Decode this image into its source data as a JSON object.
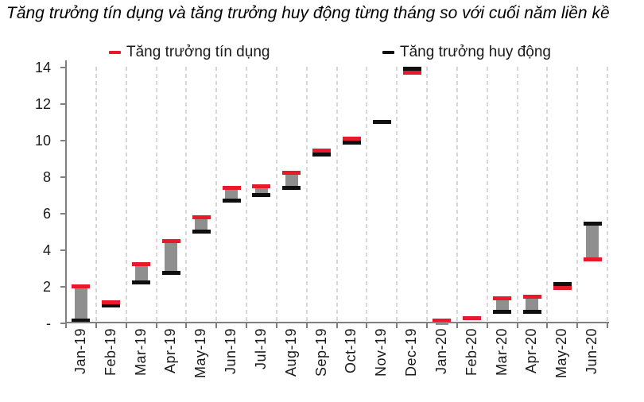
{
  "title": "Tăng trưởng tín dụng và tăng trưởng huy động từng tháng so với cuối năm liền kề",
  "legend": [
    {
      "label": "Tăng trưởng tín dụng",
      "color": "#e8192d"
    },
    {
      "label": "Tăng trưởng huy động",
      "color": "#0f0f0f"
    }
  ],
  "colors": {
    "credit": "#e8192d",
    "deposit": "#0f0f0f",
    "range_bar": "#8f8f8f",
    "axis": "#808080",
    "gridline": "#d8d8d8"
  },
  "y_axis": {
    "labels": [
      "-",
      "2",
      "4",
      "6",
      "8",
      "10",
      "12",
      "14"
    ],
    "values": [
      0,
      2,
      4,
      6,
      8,
      10,
      12,
      14
    ]
  },
  "chart_data": {
    "type": "bar",
    "subtype": "floating-range-with-dash-markers",
    "title": "Tăng trưởng tín dụng và tăng trưởng huy động từng tháng so với cuối năm liền kề",
    "categories": [
      "Jan-19",
      "Feb-19",
      "Mar-19",
      "Apr-19",
      "May-19",
      "Jun-19",
      "Jul-19",
      "Aug-19",
      "Sep-19",
      "Oct-19",
      "Nov-19",
      "Dec-19",
      "Jan-20",
      "Feb-20",
      "Mar-20",
      "Apr-20",
      "May-20",
      "Jun-20"
    ],
    "series": [
      {
        "name": "Tăng trưởng tín dụng",
        "color": "#e8192d",
        "values": [
          2.0,
          1.15,
          3.2,
          4.5,
          5.8,
          7.4,
          7.5,
          8.2,
          9.45,
          10.1,
          null,
          13.7,
          0.15,
          0.25,
          1.35,
          1.45,
          1.9,
          3.5
        ]
      },
      {
        "name": "Tăng trưởng huy động",
        "color": "#0f0f0f",
        "values": [
          0.15,
          0.95,
          2.2,
          2.75,
          5.0,
          6.7,
          7.0,
          7.4,
          9.2,
          9.85,
          11.0,
          13.9,
          -0.1,
          null,
          0.6,
          0.6,
          2.15,
          5.45
        ]
      }
    ],
    "ylim": [
      0,
      14
    ],
    "xlabel": "",
    "ylabel": "",
    "grid": "vertical-dashed",
    "legend_position": "top"
  }
}
